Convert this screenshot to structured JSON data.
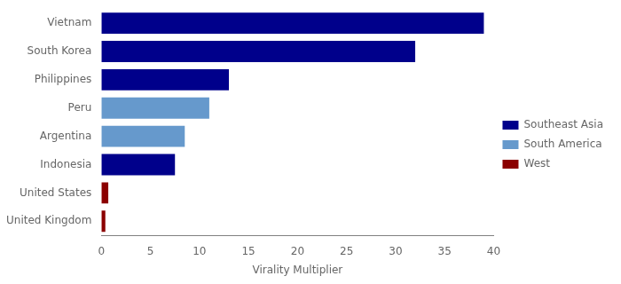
{
  "chart_data": {
    "type": "bar",
    "orientation": "horizontal",
    "categories": [
      "United Kingdom",
      "United States",
      "Indonesia",
      "Argentina",
      "Peru",
      "Philippines",
      "South Korea",
      "Vietnam"
    ],
    "series": [
      {
        "name": "Southeast Asia",
        "color": "#00008b",
        "values": [
          null,
          null,
          7.5,
          null,
          null,
          13.0,
          32.0,
          39.0
        ]
      },
      {
        "name": "South America",
        "color": "#6699cc",
        "values": [
          null,
          null,
          null,
          8.5,
          11.0,
          null,
          null,
          null
        ]
      },
      {
        "name": "West",
        "color": "#8b0000",
        "values": [
          0.4,
          0.7,
          null,
          null,
          null,
          null,
          null,
          null
        ]
      }
    ],
    "xlabel": "Virality Multiplier",
    "xlim": [
      0,
      40
    ],
    "xticks": [
      0,
      5,
      10,
      15,
      20,
      25,
      30,
      35,
      40
    ],
    "grid": false,
    "legend": "right"
  }
}
